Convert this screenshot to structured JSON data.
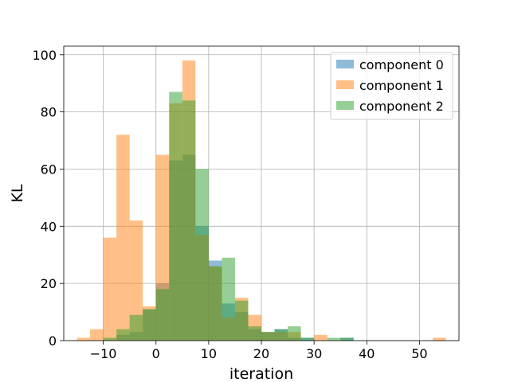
{
  "chart_data": {
    "type": "histogram",
    "title": "",
    "xlabel": "iteration",
    "ylabel": "KL",
    "xlim": [
      -17.5,
      57.5
    ],
    "ylim": [
      0,
      103
    ],
    "xticks": [
      -10,
      0,
      10,
      20,
      30,
      40,
      50
    ],
    "yticks": [
      0,
      20,
      40,
      60,
      80,
      100
    ],
    "grid": true,
    "legend_position": "top-right",
    "alpha": 0.5,
    "series": [
      {
        "name": "component 0",
        "color": "#1f77b4",
        "bins": [
          [
            -7.5,
            -5,
            2
          ],
          [
            -5,
            -2.5,
            3
          ],
          [
            -2.5,
            0,
            11
          ],
          [
            0,
            2.5,
            20
          ],
          [
            2.5,
            5,
            63
          ],
          [
            5,
            7.5,
            65
          ],
          [
            7.5,
            10,
            40
          ],
          [
            10,
            12.5,
            28
          ],
          [
            12.5,
            15,
            13
          ],
          [
            15,
            17.5,
            10
          ],
          [
            17.5,
            20,
            4
          ],
          [
            20,
            22.5,
            3
          ],
          [
            22.5,
            25,
            4
          ],
          [
            25,
            27.5,
            1
          ],
          [
            27.5,
            30,
            1
          ],
          [
            35,
            37.5,
            1
          ]
        ]
      },
      {
        "name": "component 1",
        "color": "#ff7f0e",
        "bins": [
          [
            -15,
            -12.5,
            1
          ],
          [
            -12.5,
            -10,
            4
          ],
          [
            -10,
            -7.5,
            36
          ],
          [
            -7.5,
            -5,
            72
          ],
          [
            -5,
            -2.5,
            42
          ],
          [
            -2.5,
            0,
            12
          ],
          [
            0,
            2.5,
            65
          ],
          [
            2.5,
            5,
            83
          ],
          [
            5,
            7.5,
            98
          ],
          [
            7.5,
            10,
            37
          ],
          [
            10,
            12.5,
            26
          ],
          [
            12.5,
            15,
            8
          ],
          [
            15,
            17.5,
            15
          ],
          [
            17.5,
            20,
            9
          ],
          [
            20,
            22.5,
            3
          ],
          [
            22.5,
            25,
            3
          ],
          [
            25,
            27.5,
            3
          ],
          [
            30,
            32.5,
            2
          ],
          [
            52.5,
            55,
            1
          ]
        ]
      },
      {
        "name": "component 2",
        "color": "#2ca02c",
        "bins": [
          [
            -10,
            -7.5,
            1
          ],
          [
            -7.5,
            -5,
            4
          ],
          [
            -5,
            -2.5,
            9
          ],
          [
            -2.5,
            0,
            11
          ],
          [
            0,
            2.5,
            18
          ],
          [
            2.5,
            5,
            87
          ],
          [
            5,
            7.5,
            84
          ],
          [
            7.5,
            10,
            60
          ],
          [
            10,
            12.5,
            26
          ],
          [
            12.5,
            15,
            29
          ],
          [
            15,
            17.5,
            14
          ],
          [
            17.5,
            20,
            5
          ],
          [
            20,
            22.5,
            3
          ],
          [
            22.5,
            25,
            4
          ],
          [
            25,
            27.5,
            5
          ],
          [
            27.5,
            30,
            1
          ],
          [
            32.5,
            35,
            1
          ],
          [
            35,
            37.5,
            1
          ]
        ]
      }
    ]
  }
}
